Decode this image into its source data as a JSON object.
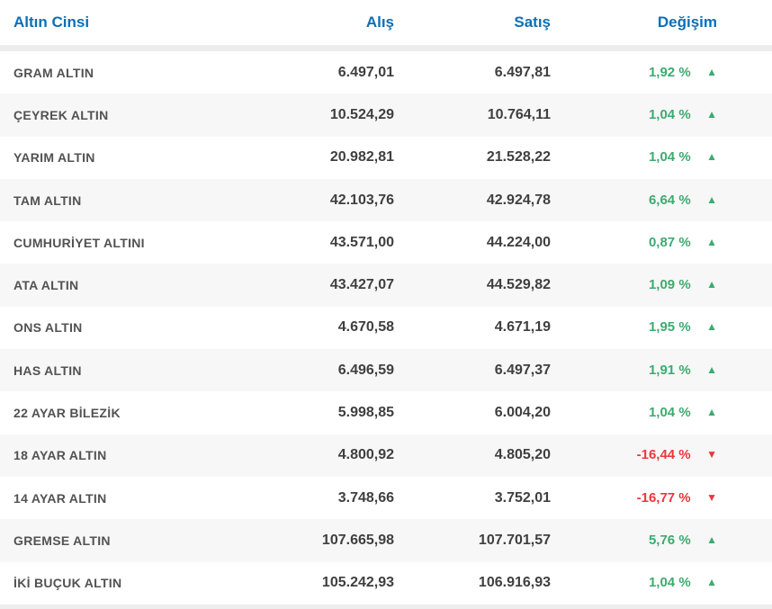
{
  "table": {
    "headers": {
      "name": "Altın Cinsi",
      "buy": "Alış",
      "sell": "Satış",
      "change": "Değişim"
    },
    "rows": [
      {
        "name": "GRAM ALTIN",
        "buy": "6.497,01",
        "sell": "6.497,81",
        "change": "1,92 %",
        "direction": "up"
      },
      {
        "name": "ÇEYREK ALTIN",
        "buy": "10.524,29",
        "sell": "10.764,11",
        "change": "1,04 %",
        "direction": "up"
      },
      {
        "name": "YARIM ALTIN",
        "buy": "20.982,81",
        "sell": "21.528,22",
        "change": "1,04 %",
        "direction": "up"
      },
      {
        "name": "TAM ALTIN",
        "buy": "42.103,76",
        "sell": "42.924,78",
        "change": "6,64 %",
        "direction": "up"
      },
      {
        "name": "CUMHURİYET ALTINI",
        "buy": "43.571,00",
        "sell": "44.224,00",
        "change": "0,87 %",
        "direction": "up"
      },
      {
        "name": "ATA ALTIN",
        "buy": "43.427,07",
        "sell": "44.529,82",
        "change": "1,09 %",
        "direction": "up"
      },
      {
        "name": "ONS ALTIN",
        "buy": "4.670,58",
        "sell": "4.671,19",
        "change": "1,95 %",
        "direction": "up"
      },
      {
        "name": "HAS ALTIN",
        "buy": "6.496,59",
        "sell": "6.497,37",
        "change": "1,91 %",
        "direction": "up"
      },
      {
        "name": "22 AYAR BİLEZİK",
        "buy": "5.998,85",
        "sell": "6.004,20",
        "change": "1,04 %",
        "direction": "up"
      },
      {
        "name": "18 AYAR ALTIN",
        "buy": "4.800,92",
        "sell": "4.805,20",
        "change": "-16,44 %",
        "direction": "down"
      },
      {
        "name": "14 AYAR ALTIN",
        "buy": "3.748,66",
        "sell": "3.752,01",
        "change": "-16,77 %",
        "direction": "down"
      },
      {
        "name": "GREMSE ALTIN",
        "buy": "107.665,98",
        "sell": "107.701,57",
        "change": "5,76 %",
        "direction": "up"
      },
      {
        "name": "İKİ BUÇUK ALTIN",
        "buy": "105.242,93",
        "sell": "106.916,93",
        "change": "1,04 %",
        "direction": "up"
      }
    ],
    "icons": {
      "up": "▲",
      "down": "▼"
    }
  },
  "colors": {
    "header_blue": "#0c6fb6",
    "up_green": "#3cab70",
    "down_red": "#ee363c",
    "row_alt_bg": "#f7f7f7",
    "separator": "#ededed"
  }
}
